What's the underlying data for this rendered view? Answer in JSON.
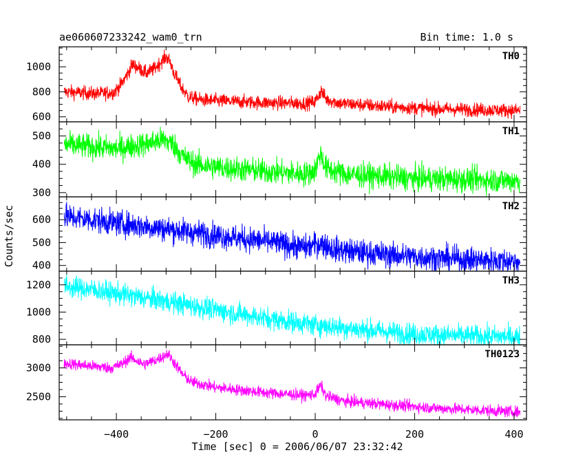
{
  "chart_data": {
    "type": "line",
    "title": "ae060607233242_wam0_trn",
    "bin_time_label": "Bin time: 1.0 s",
    "xlabel": "Time [sec] 0 = 2006/06/07 23:32:42",
    "ylabel": "Counts/sec",
    "xlim": [
      -515,
      425
    ],
    "x_ticks": [
      -400,
      -200,
      0,
      200,
      400
    ],
    "x_tick_labels": [
      "−400",
      "−200",
      "0",
      "200",
      "400"
    ],
    "data_x_range": [
      -505,
      412
    ],
    "panels": [
      {
        "name": "TH0",
        "color": "#ff0000",
        "ylim": [
          560,
          1160
        ],
        "y_ticks": [
          600,
          800,
          1000
        ],
        "y_tick_labels": [
          "600",
          "800",
          "1000"
        ],
        "noise": 28,
        "profile": [
          [
            -505,
            800
          ],
          [
            -480,
            795
          ],
          [
            -440,
            785
          ],
          [
            -405,
            795
          ],
          [
            -390,
            860
          ],
          [
            -375,
            960
          ],
          [
            -368,
            1020
          ],
          [
            -355,
            990
          ],
          [
            -340,
            950
          ],
          [
            -325,
            980
          ],
          [
            -310,
            1040
          ],
          [
            -300,
            1080
          ],
          [
            -293,
            1050
          ],
          [
            -285,
            960
          ],
          [
            -270,
            840
          ],
          [
            -255,
            760
          ],
          [
            -230,
            735
          ],
          [
            -180,
            725
          ],
          [
            -100,
            712
          ],
          [
            -20,
            708
          ],
          [
            0,
            720
          ],
          [
            12,
            810
          ],
          [
            22,
            740
          ],
          [
            50,
            708
          ],
          [
            150,
            680
          ],
          [
            250,
            662
          ],
          [
            412,
            650
          ]
        ]
      },
      {
        "name": "TH1",
        "color": "#00ff00",
        "ylim": [
          285,
          550
        ],
        "y_ticks": [
          300,
          400,
          500
        ],
        "y_tick_labels": [
          "300",
          "400",
          "500"
        ],
        "noise": 22,
        "profile": [
          [
            -505,
            470
          ],
          [
            -450,
            462
          ],
          [
            -400,
            455
          ],
          [
            -340,
            472
          ],
          [
            -305,
            488
          ],
          [
            -285,
            470
          ],
          [
            -265,
            425
          ],
          [
            -240,
            400
          ],
          [
            -200,
            390
          ],
          [
            -100,
            375
          ],
          [
            -20,
            365
          ],
          [
            0,
            378
          ],
          [
            10,
            440
          ],
          [
            22,
            385
          ],
          [
            60,
            365
          ],
          [
            200,
            350
          ],
          [
            412,
            342
          ]
        ]
      },
      {
        "name": "TH2",
        "color": "#0000ff",
        "ylim": [
          375,
          700
        ],
        "y_ticks": [
          400,
          500,
          600
        ],
        "y_tick_labels": [
          "400",
          "500",
          "600"
        ],
        "noise": 28,
        "profile": [
          [
            -505,
            615
          ],
          [
            -450,
            600
          ],
          [
            -400,
            585
          ],
          [
            -300,
            560
          ],
          [
            -200,
            532
          ],
          [
            -100,
            505
          ],
          [
            -20,
            478
          ],
          [
            10,
            498
          ],
          [
            40,
            470
          ],
          [
            100,
            455
          ],
          [
            200,
            438
          ],
          [
            300,
            426
          ],
          [
            412,
            418
          ]
        ]
      },
      {
        "name": "TH3",
        "color": "#00ffff",
        "ylim": [
          760,
          1300
        ],
        "y_ticks": [
          800,
          1000,
          1200
        ],
        "y_tick_labels": [
          "800",
          "1000",
          "1200"
        ],
        "noise": 40,
        "profile": [
          [
            -505,
            1190
          ],
          [
            -450,
            1165
          ],
          [
            -400,
            1135
          ],
          [
            -300,
            1080
          ],
          [
            -200,
            1015
          ],
          [
            -100,
            955
          ],
          [
            0,
            905
          ],
          [
            100,
            870
          ],
          [
            200,
            838
          ],
          [
            300,
            825
          ],
          [
            412,
            818
          ]
        ]
      },
      {
        "name": "TH0123",
        "color": "#ff00ff",
        "ylim": [
          2100,
          3400
        ],
        "y_ticks": [
          2500,
          3000
        ],
        "y_tick_labels": [
          "2500",
          "3000"
        ],
        "noise": 50,
        "profile": [
          [
            -505,
            3080
          ],
          [
            -460,
            3040
          ],
          [
            -410,
            3000
          ],
          [
            -390,
            3060
          ],
          [
            -372,
            3180
          ],
          [
            -362,
            3140
          ],
          [
            -345,
            3060
          ],
          [
            -325,
            3120
          ],
          [
            -305,
            3200
          ],
          [
            -297,
            3250
          ],
          [
            -285,
            3110
          ],
          [
            -268,
            2900
          ],
          [
            -250,
            2760
          ],
          [
            -200,
            2660
          ],
          [
            -100,
            2570
          ],
          [
            -20,
            2525
          ],
          [
            0,
            2545
          ],
          [
            11,
            2700
          ],
          [
            22,
            2510
          ],
          [
            60,
            2420
          ],
          [
            150,
            2360
          ],
          [
            250,
            2300
          ],
          [
            412,
            2235
          ]
        ]
      }
    ]
  }
}
